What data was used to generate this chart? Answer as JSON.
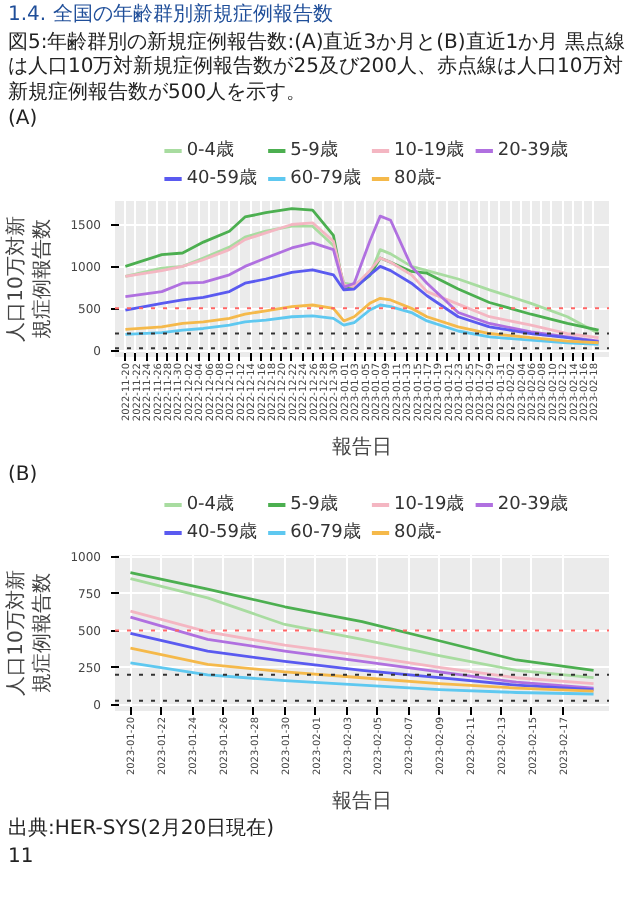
{
  "chart_data": [
    {
      "type": "other",
      "title": "1.4. 全国の年齢群別新規症例報告数",
      "subtitle": "図5:年齢群別の新規症例報告数:(A)直近3か月と(B)直近1か月 黒点線は人口10万対新規症例報告数が25及び200人、赤点線は人口10万対新規症例報告数が500人を示す。"
    },
    {
      "type": "line",
      "title": "(A)",
      "xlabel": "報告日",
      "ylabel": "人口10万対新規症例報告数",
      "legend": "top",
      "grid": true,
      "x": [
        "2022-11-20",
        "2022-11-27",
        "2022-12-01",
        "2022-12-05",
        "2022-12-10",
        "2022-12-13",
        "2022-12-17",
        "2022-12-22",
        "2022-12-26",
        "2022-12-30",
        "2023-01-01",
        "2023-01-03",
        "2023-01-06",
        "2023-01-08",
        "2023-01-10",
        "2023-01-14",
        "2023-01-17",
        "2023-01-23",
        "2023-01-29",
        "2023-02-06",
        "2023-02-13",
        "2023-02-19"
      ],
      "xlim": [
        "2022-11-18",
        "2023-02-21"
      ],
      "ylim": [
        -80,
        1780
      ],
      "yticks": [
        0,
        500,
        1000,
        1500
      ],
      "xticks": [
        "2022-11-20",
        "2022-11-22",
        "2022-11-24",
        "2022-11-26",
        "2022-11-28",
        "2022-11-30",
        "2022-12-02",
        "2022-12-04",
        "2022-12-06",
        "2022-12-08",
        "2022-12-10",
        "2022-12-12",
        "2022-12-14",
        "2022-12-16",
        "2022-12-18",
        "2022-12-20",
        "2022-12-22",
        "2022-12-24",
        "2022-12-26",
        "2022-12-28",
        "2022-12-30",
        "2023-01-01",
        "2023-01-03",
        "2023-01-05",
        "2023-01-07",
        "2023-01-09",
        "2023-01-11",
        "2023-01-13",
        "2023-01-15",
        "2023-01-17",
        "2023-01-19",
        "2023-01-21",
        "2023-01-23",
        "2023-01-25",
        "2023-01-27",
        "2023-01-29",
        "2023-01-31",
        "2023-02-02",
        "2023-02-04",
        "2023-02-06",
        "2023-02-08",
        "2023-02-10",
        "2023-02-12",
        "2023-02-14",
        "2023-02-16",
        "2023-02-18"
      ],
      "ref_lines": [
        {
          "axis": "y",
          "value": 25,
          "color": "#333333",
          "line_style": "dotted"
        },
        {
          "axis": "y",
          "value": 200,
          "color": "#333333",
          "line_style": "dotted"
        },
        {
          "axis": "y",
          "value": 500,
          "color": "#ff6666",
          "line_style": "dotted"
        }
      ],
      "series": [
        {
          "name": "0-4歳",
          "color": "#a8dca0",
          "values": [
            880,
            980,
            1000,
            1100,
            1230,
            1350,
            1420,
            1480,
            1480,
            1250,
            800,
            780,
            900,
            1200,
            1150,
            1000,
            950,
            850,
            720,
            560,
            400,
            200
          ]
        },
        {
          "name": "5-9歳",
          "color": "#4caf50",
          "values": [
            1000,
            1140,
            1160,
            1290,
            1420,
            1590,
            1640,
            1690,
            1670,
            1370,
            730,
            750,
            890,
            1100,
            1050,
            940,
            920,
            730,
            570,
            430,
            320,
            240
          ]
        },
        {
          "name": "10-19歳",
          "color": "#f4b6c2",
          "values": [
            880,
            950,
            1000,
            1080,
            1200,
            1320,
            1400,
            1500,
            1520,
            1300,
            780,
            760,
            950,
            1100,
            1050,
            900,
            700,
            550,
            400,
            300,
            200,
            150
          ]
        },
        {
          "name": "20-39歳",
          "color": "#b070e0",
          "values": [
            640,
            700,
            800,
            810,
            900,
            1000,
            1100,
            1220,
            1280,
            1200,
            750,
            800,
            1300,
            1600,
            1550,
            1000,
            800,
            450,
            320,
            220,
            160,
            110
          ]
        },
        {
          "name": "40-59歳",
          "color": "#5a5af0",
          "values": [
            480,
            560,
            600,
            630,
            700,
            800,
            850,
            930,
            960,
            900,
            720,
            730,
            900,
            1000,
            950,
            800,
            650,
            400,
            280,
            200,
            150,
            100
          ]
        },
        {
          "name": "60-79歳",
          "color": "#5ec8f0",
          "values": [
            190,
            210,
            240,
            260,
            300,
            340,
            360,
            400,
            410,
            380,
            300,
            330,
            480,
            540,
            520,
            450,
            350,
            230,
            160,
            120,
            90,
            70
          ]
        },
        {
          "name": "80歳-",
          "color": "#f5b94a",
          "values": [
            250,
            280,
            320,
            340,
            380,
            430,
            470,
            520,
            540,
            500,
            350,
            400,
            560,
            620,
            600,
            500,
            400,
            280,
            200,
            150,
            110,
            90
          ]
        }
      ]
    },
    {
      "type": "line",
      "title": "(B)",
      "xlabel": "報告日",
      "ylabel": "人口10万対新規症例報告数",
      "legend": "top",
      "grid": true,
      "x": [
        "2023-01-20",
        "2023-01-25",
        "2023-01-30",
        "2023-02-04",
        "2023-02-09",
        "2023-02-14",
        "2023-02-19"
      ],
      "xlim": [
        "2023-01-19",
        "2023-02-20"
      ],
      "ylim": [
        -45,
        1010
      ],
      "yticks": [
        0,
        250,
        500,
        750,
        1000
      ],
      "xticks": [
        "2023-01-20",
        "2023-01-22",
        "2023-01-24",
        "2023-01-26",
        "2023-01-28",
        "2023-01-30",
        "2023-02-01",
        "2023-02-03",
        "2023-02-05",
        "2023-02-07",
        "2023-02-09",
        "2023-02-11",
        "2023-02-13",
        "2023-02-15",
        "2023-02-17"
      ],
      "ref_lines": [
        {
          "axis": "y",
          "value": 25,
          "color": "#333333",
          "line_style": "dotted"
        },
        {
          "axis": "y",
          "value": 200,
          "color": "#333333",
          "line_style": "dotted"
        },
        {
          "axis": "y",
          "value": 500,
          "color": "#ff6666",
          "line_style": "dotted"
        }
      ],
      "annotations": [
        "出典:HER-SYS(2月20日現在)",
        "11"
      ],
      "series": [
        {
          "name": "0-4歳",
          "color": "#a8dca0",
          "values": [
            850,
            720,
            540,
            440,
            330,
            230,
            180
          ]
        },
        {
          "name": "5-9歳",
          "color": "#4caf50",
          "values": [
            890,
            780,
            660,
            560,
            430,
            300,
            230
          ]
        },
        {
          "name": "10-19歳",
          "color": "#f4b6c2",
          "values": [
            630,
            490,
            400,
            330,
            250,
            180,
            140
          ]
        },
        {
          "name": "20-39歳",
          "color": "#b070e0",
          "values": [
            590,
            440,
            360,
            290,
            220,
            150,
            110
          ]
        },
        {
          "name": "40-59歳",
          "color": "#5a5af0",
          "values": [
            480,
            360,
            290,
            230,
            180,
            130,
            100
          ]
        },
        {
          "name": "60-79歳",
          "color": "#5ec8f0",
          "values": [
            280,
            200,
            160,
            130,
            100,
            80,
            70
          ]
        },
        {
          "name": "80歳-",
          "color": "#f5b94a",
          "values": [
            380,
            270,
            220,
            180,
            140,
            110,
            90
          ]
        }
      ]
    }
  ]
}
